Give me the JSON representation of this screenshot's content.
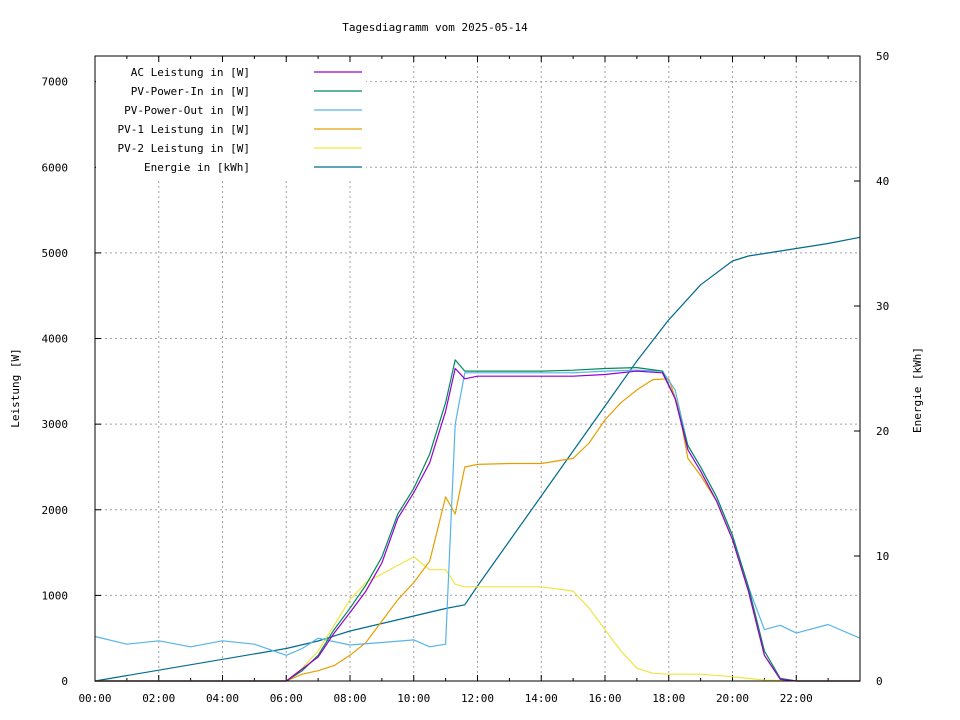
{
  "chart_data": {
    "type": "line",
    "title": "Tagesdiagramm vom 2025-05-14",
    "xlabel": "",
    "ylabel": "Leistung [W]",
    "y2label": "Energie [kWh]",
    "x_ticks": [
      "00:00",
      "02:00",
      "04:00",
      "06:00",
      "08:00",
      "10:00",
      "12:00",
      "14:00",
      "16:00",
      "18:00",
      "20:00",
      "22:00"
    ],
    "xlim_hours": [
      0,
      24
    ],
    "ylim": [
      0,
      7300
    ],
    "y_ticks": [
      0,
      1000,
      2000,
      3000,
      4000,
      5000,
      6000,
      7000
    ],
    "y2lim": [
      0,
      50
    ],
    "y2_ticks": [
      0,
      10,
      20,
      30,
      40,
      50
    ],
    "grid": true,
    "legend_position": "top-left",
    "series": [
      {
        "name": "AC Leistung in [W]",
        "color": "#9400d3",
        "axis": "left",
        "x": [
          0,
          6.0,
          7.0,
          7.5,
          8.0,
          8.5,
          9.0,
          9.5,
          10.0,
          10.5,
          11.0,
          11.3,
          11.6,
          12.0,
          13.0,
          14.0,
          15.0,
          16.0,
          17.0,
          17.8,
          18.2,
          18.6,
          19.0,
          19.5,
          20.0,
          20.5,
          21.0,
          21.5,
          22.0,
          24.0
        ],
        "y": [
          0,
          0,
          280,
          560,
          800,
          1050,
          1380,
          1900,
          2200,
          2550,
          3150,
          3650,
          3530,
          3560,
          3560,
          3560,
          3560,
          3580,
          3620,
          3600,
          3300,
          2700,
          2450,
          2100,
          1650,
          1050,
          300,
          20,
          0,
          0
        ]
      },
      {
        "name": "PV-Power-In in [W]",
        "color": "#008b5a",
        "axis": "left",
        "x": [
          0,
          6.0,
          6.5,
          7.0,
          7.5,
          8.0,
          8.5,
          9.0,
          9.5,
          10.0,
          10.5,
          11.0,
          11.3,
          11.6,
          12.0,
          13.0,
          14.0,
          15.0,
          16.0,
          17.0,
          17.8,
          18.2,
          18.6,
          19.0,
          19.5,
          20.0,
          20.5,
          21.0,
          21.5,
          22.0,
          24.0
        ],
        "y": [
          0,
          0,
          120,
          300,
          600,
          850,
          1120,
          1450,
          1950,
          2250,
          2650,
          3250,
          3750,
          3620,
          3620,
          3620,
          3620,
          3630,
          3650,
          3660,
          3620,
          3300,
          2750,
          2500,
          2150,
          1700,
          1100,
          350,
          30,
          0,
          0
        ]
      },
      {
        "name": "PV-Power-Out in [W]",
        "color": "#56b4e9",
        "axis": "left",
        "x": [
          0,
          1,
          2,
          3,
          4,
          5,
          6,
          6.5,
          7,
          8,
          9,
          10,
          10.5,
          11,
          11.3,
          11.6,
          12,
          13,
          14,
          15,
          16,
          17,
          17.8,
          18.2,
          18.6,
          19,
          19.5,
          20,
          20.5,
          21,
          21.5,
          22,
          23,
          24
        ],
        "y": [
          520,
          430,
          470,
          400,
          470,
          430,
          300,
          380,
          500,
          420,
          450,
          480,
          400,
          430,
          3000,
          3600,
          3600,
          3600,
          3600,
          3600,
          3620,
          3630,
          3620,
          3400,
          2750,
          2500,
          2150,
          1700,
          1100,
          600,
          650,
          560,
          660,
          500
        ]
      },
      {
        "name": "PV-1 Leistung in [W]",
        "color": "#e69f00",
        "axis": "left",
        "x": [
          0,
          6.0,
          6.5,
          7.0,
          7.5,
          8.0,
          8.5,
          9.0,
          9.5,
          10.0,
          10.5,
          11.0,
          11.3,
          11.6,
          12.0,
          13.0,
          14.0,
          15.0,
          15.5,
          16.0,
          16.5,
          17.0,
          17.5,
          18.0,
          18.3,
          18.6,
          19.0,
          19.5,
          20.0,
          20.5,
          21.0,
          21.5,
          22.0,
          24.0
        ],
        "y": [
          0,
          0,
          80,
          120,
          180,
          300,
          450,
          700,
          950,
          1150,
          1400,
          2150,
          1950,
          2500,
          2530,
          2540,
          2540,
          2600,
          2780,
          3050,
          3250,
          3400,
          3520,
          3530,
          3200,
          2600,
          2400,
          2100,
          1650,
          1050,
          300,
          20,
          0,
          0
        ]
      },
      {
        "name": "PV-2 Leistung in [W]",
        "color": "#f0e442",
        "axis": "left",
        "x": [
          0,
          6.0,
          6.5,
          7.0,
          7.5,
          8.0,
          8.5,
          9.0,
          9.5,
          10.0,
          10.5,
          11.0,
          11.3,
          11.6,
          12.0,
          13.0,
          14.0,
          15.0,
          15.5,
          16.0,
          16.5,
          17.0,
          17.5,
          18.0,
          19.0,
          20.0,
          20.5,
          21.0,
          22.0,
          24.0
        ],
        "y": [
          0,
          0,
          150,
          350,
          650,
          950,
          1150,
          1250,
          1350,
          1450,
          1300,
          1300,
          1130,
          1100,
          1100,
          1100,
          1100,
          1050,
          850,
          600,
          350,
          150,
          90,
          80,
          80,
          50,
          30,
          10,
          0,
          0
        ]
      },
      {
        "name": "Energie in [kWh]",
        "color": "#006b8f",
        "axis": "right",
        "x": [
          0,
          6.0,
          7.0,
          8.0,
          9.0,
          10.0,
          11.0,
          11.6,
          12.0,
          13.0,
          14.0,
          15.0,
          16.0,
          17.0,
          18.0,
          19.0,
          20.0,
          20.5,
          21.0,
          22.0,
          23.0,
          24.0
        ],
        "y": [
          0,
          2.6,
          3.2,
          4.0,
          4.6,
          5.2,
          5.8,
          6.1,
          7.6,
          11.2,
          14.8,
          18.4,
          22.0,
          25.6,
          28.9,
          31.7,
          33.6,
          34.0,
          34.2,
          34.6,
          35.0,
          35.5
        ]
      }
    ]
  }
}
